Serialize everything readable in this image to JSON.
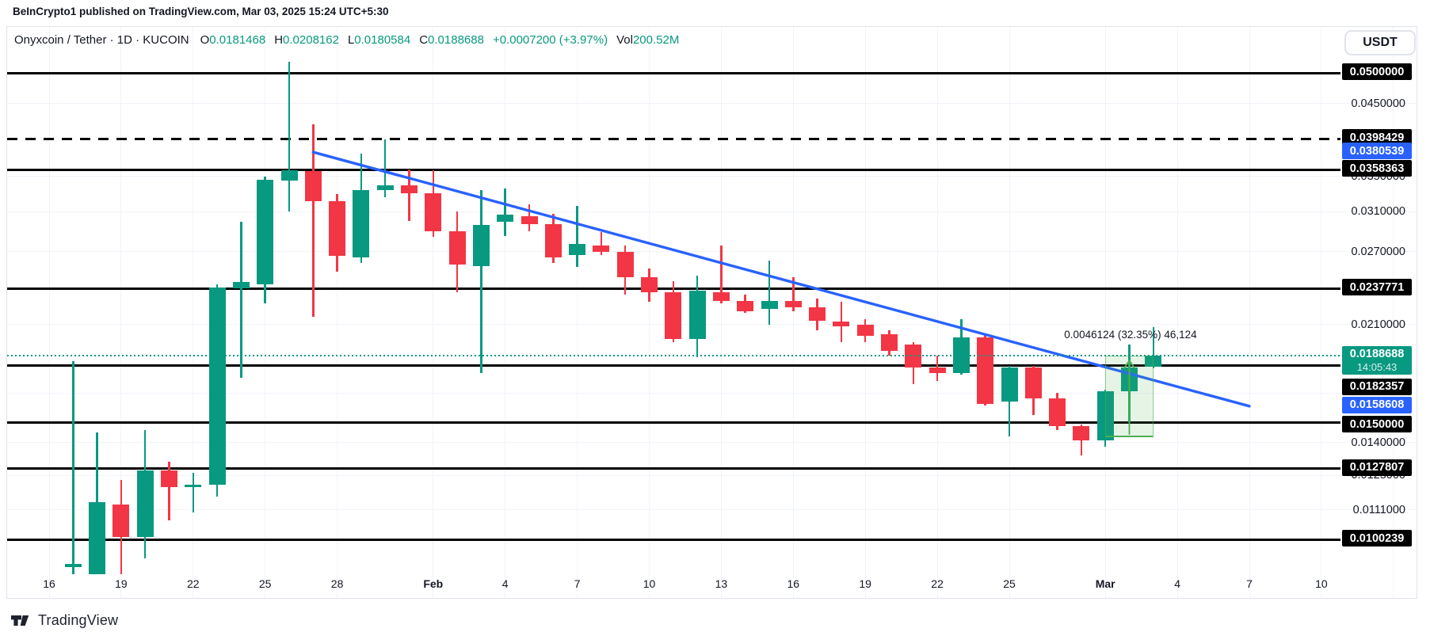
{
  "header": {
    "text": "BeInCrypto1 published on TradingView.com, Mar 03, 2025 15:24 UTC+5:30"
  },
  "legend": {
    "symbol": "Onyxcoin / Tether · 1D · KUCOIN",
    "o_label": "O",
    "o": "0.0181468",
    "h_label": "H",
    "h": "0.0208162",
    "l_label": "L",
    "l": "0.0180584",
    "c_label": "C",
    "c": "0.0188688",
    "change": "+0.0007200 (+3.97%)",
    "vol_label": "Vol",
    "vol": "200.52M"
  },
  "currency_button": {
    "label": "USDT"
  },
  "footer": {
    "brand": "TradingView"
  },
  "colors": {
    "up": "#089981",
    "down": "#f23645",
    "trendline": "#2962ff",
    "level_line": "#000000",
    "measure_green": "#4caf50",
    "grid": "#f0f3fa",
    "text": "#131722",
    "badge_black": "#000000",
    "badge_blue": "#2962ff",
    "badge_teal": "#089981"
  },
  "time_axis": {
    "ticks": [
      {
        "i": 0,
        "label": "16"
      },
      {
        "i": 3,
        "label": "19"
      },
      {
        "i": 6,
        "label": "22"
      },
      {
        "i": 9,
        "label": "25"
      },
      {
        "i": 12,
        "label": "28"
      },
      {
        "i": 16,
        "label": "Feb",
        "bold": true
      },
      {
        "i": 19,
        "label": "4"
      },
      {
        "i": 22,
        "label": "7"
      },
      {
        "i": 25,
        "label": "10"
      },
      {
        "i": 28,
        "label": "13"
      },
      {
        "i": 31,
        "label": "16"
      },
      {
        "i": 34,
        "label": "19"
      },
      {
        "i": 37,
        "label": "22"
      },
      {
        "i": 40,
        "label": "25"
      },
      {
        "i": 44,
        "label": "Mar",
        "bold": true
      },
      {
        "i": 47,
        "label": "4"
      },
      {
        "i": 50,
        "label": "7"
      },
      {
        "i": 53,
        "label": "10"
      }
    ],
    "extra_grid_indices": [
      56
    ]
  },
  "price_axis": {
    "plain_labels": [
      {
        "label": "0.0450000",
        "value": 0.045
      },
      {
        "label": "0.0350000",
        "value": 0.035
      },
      {
        "label": "0.0310000",
        "value": 0.031
      },
      {
        "label": "0.0270000",
        "value": 0.027
      },
      {
        "label": "0.0210000",
        "value": 0.021
      },
      {
        "label": "0.0140000",
        "value": 0.014
      },
      {
        "label": "0.0125000",
        "value": 0.0125
      },
      {
        "label": "0.0111000",
        "value": 0.0111
      }
    ],
    "grid_values": [
      0.045,
      0.035,
      0.031,
      0.027,
      0.021,
      0.0166,
      0.014,
      0.0125,
      0.0111
    ]
  },
  "chart_data": {
    "type": "candlestick",
    "title": "Onyxcoin / Tether",
    "exchange": "KUCOIN",
    "interval": "1D",
    "scale": "log",
    "ylim": [
      0.0089,
      0.055
    ],
    "grid": true,
    "candles": [
      {
        "date": "Jan 17",
        "o": 0.0091,
        "h": 0.0185,
        "l": 0.0089,
        "c": 0.0092
      },
      {
        "date": "Jan 18",
        "o": 0.0089,
        "h": 0.0145,
        "l": 0.0089,
        "c": 0.0114
      },
      {
        "date": "Jan 19",
        "o": 0.0113,
        "h": 0.0123,
        "l": 0.0089,
        "c": 0.0101
      },
      {
        "date": "Jan 20",
        "o": 0.0101,
        "h": 0.0146,
        "l": 0.0094,
        "c": 0.0127
      },
      {
        "date": "Jan 21",
        "o": 0.0127,
        "h": 0.0131,
        "l": 0.0107,
        "c": 0.012
      },
      {
        "date": "Jan 22",
        "o": 0.012,
        "h": 0.0126,
        "l": 0.011,
        "c": 0.0121
      },
      {
        "date": "Jan 23",
        "o": 0.0121,
        "h": 0.0241,
        "l": 0.0116,
        "c": 0.0239
      },
      {
        "date": "Jan 24",
        "o": 0.0238,
        "h": 0.0299,
        "l": 0.0175,
        "c": 0.0243
      },
      {
        "date": "Jan 25",
        "o": 0.0241,
        "h": 0.035,
        "l": 0.0226,
        "c": 0.0346
      },
      {
        "date": "Jan 26",
        "o": 0.0345,
        "h": 0.052,
        "l": 0.031,
        "c": 0.0357
      },
      {
        "date": "Jan 27",
        "o": 0.0356,
        "h": 0.0419,
        "l": 0.0216,
        "c": 0.0321
      },
      {
        "date": "Jan 28",
        "o": 0.0321,
        "h": 0.0329,
        "l": 0.0252,
        "c": 0.0266
      },
      {
        "date": "Jan 29",
        "o": 0.0265,
        "h": 0.0379,
        "l": 0.026,
        "c": 0.0334
      },
      {
        "date": "Jan 30",
        "o": 0.0334,
        "h": 0.0398,
        "l": 0.0326,
        "c": 0.0339
      },
      {
        "date": "Jan 31",
        "o": 0.0339,
        "h": 0.0358,
        "l": 0.03,
        "c": 0.033
      },
      {
        "date": "Feb 1",
        "o": 0.033,
        "h": 0.0357,
        "l": 0.0284,
        "c": 0.029
      },
      {
        "date": "Feb 2",
        "o": 0.029,
        "h": 0.031,
        "l": 0.0235,
        "c": 0.0258
      },
      {
        "date": "Feb 3",
        "o": 0.0257,
        "h": 0.0334,
        "l": 0.0178,
        "c": 0.0296
      },
      {
        "date": "Feb 4",
        "o": 0.0299,
        "h": 0.0336,
        "l": 0.0285,
        "c": 0.0307
      },
      {
        "date": "Feb 5",
        "o": 0.0305,
        "h": 0.0318,
        "l": 0.029,
        "c": 0.0297
      },
      {
        "date": "Feb 6",
        "o": 0.0297,
        "h": 0.0308,
        "l": 0.026,
        "c": 0.0265
      },
      {
        "date": "Feb 7",
        "o": 0.0267,
        "h": 0.0316,
        "l": 0.0256,
        "c": 0.0277
      },
      {
        "date": "Feb 8",
        "o": 0.0276,
        "h": 0.0289,
        "l": 0.0267,
        "c": 0.027
      },
      {
        "date": "Feb 9",
        "o": 0.027,
        "h": 0.0276,
        "l": 0.0233,
        "c": 0.0247
      },
      {
        "date": "Feb 10",
        "o": 0.0247,
        "h": 0.0255,
        "l": 0.0227,
        "c": 0.0235
      },
      {
        "date": "Feb 11",
        "o": 0.0235,
        "h": 0.0244,
        "l": 0.0198,
        "c": 0.02
      },
      {
        "date": "Feb 12",
        "o": 0.02,
        "h": 0.0249,
        "l": 0.0188,
        "c": 0.0236
      },
      {
        "date": "Feb 13",
        "o": 0.0235,
        "h": 0.0276,
        "l": 0.0226,
        "c": 0.0228
      },
      {
        "date": "Feb 14",
        "o": 0.0228,
        "h": 0.0233,
        "l": 0.0219,
        "c": 0.022
      },
      {
        "date": "Feb 15",
        "o": 0.0222,
        "h": 0.0262,
        "l": 0.021,
        "c": 0.0228
      },
      {
        "date": "Feb 16",
        "o": 0.0228,
        "h": 0.0247,
        "l": 0.022,
        "c": 0.0223
      },
      {
        "date": "Feb 17",
        "o": 0.0223,
        "h": 0.023,
        "l": 0.0206,
        "c": 0.0213
      },
      {
        "date": "Feb 18",
        "o": 0.0212,
        "h": 0.0227,
        "l": 0.0198,
        "c": 0.0209
      },
      {
        "date": "Feb 19",
        "o": 0.021,
        "h": 0.0214,
        "l": 0.0198,
        "c": 0.0202
      },
      {
        "date": "Feb 20",
        "o": 0.0203,
        "h": 0.0206,
        "l": 0.0189,
        "c": 0.0192
      },
      {
        "date": "Feb 21",
        "o": 0.0196,
        "h": 0.0198,
        "l": 0.0171,
        "c": 0.0181
      },
      {
        "date": "Feb 22",
        "o": 0.0181,
        "h": 0.0189,
        "l": 0.0173,
        "c": 0.0178
      },
      {
        "date": "Feb 23",
        "o": 0.0178,
        "h": 0.0214,
        "l": 0.0177,
        "c": 0.0201
      },
      {
        "date": "Feb 24",
        "o": 0.0201,
        "h": 0.0203,
        "l": 0.0159,
        "c": 0.016
      },
      {
        "date": "Feb 25",
        "o": 0.0161,
        "h": 0.0182,
        "l": 0.0143,
        "c": 0.0181
      },
      {
        "date": "Feb 26",
        "o": 0.0181,
        "h": 0.0182,
        "l": 0.0154,
        "c": 0.0163
      },
      {
        "date": "Feb 27",
        "o": 0.0163,
        "h": 0.0166,
        "l": 0.0146,
        "c": 0.0148
      },
      {
        "date": "Feb 28",
        "o": 0.0148,
        "h": 0.0149,
        "l": 0.0134,
        "c": 0.0141
      },
      {
        "date": "Mar 1",
        "o": 0.0141,
        "h": 0.0168,
        "l": 0.0138,
        "c": 0.0167
      },
      {
        "date": "Mar 2",
        "o": 0.0167,
        "h": 0.0196,
        "l": 0.015,
        "c": 0.0181
      },
      {
        "date": "Mar 3",
        "o": 0.0181468,
        "h": 0.0208162,
        "l": 0.0180584,
        "c": 0.0188688
      }
    ],
    "levels": [
      {
        "price": "0.0500000",
        "value": 0.05,
        "style": "solid",
        "badge_offset": 0
      },
      {
        "price": "0.0398429",
        "value": 0.0398429,
        "style": "dashed",
        "badge_offset": 0
      },
      {
        "price": "0.0358363",
        "value": 0.0358363,
        "style": "solid",
        "badge_offset": 0
      },
      {
        "price": "0.0237771",
        "value": 0.0237771,
        "style": "solid",
        "badge_offset": 0
      },
      {
        "price": "0.0182357",
        "value": 0.0182357,
        "style": "solid",
        "badge_offset": 28
      },
      {
        "price": "0.0150000",
        "value": 0.015,
        "style": "solid",
        "badge_offset": 4
      },
      {
        "price": "0.0127807",
        "value": 0.0127807,
        "style": "solid",
        "badge_offset": 0
      },
      {
        "price": "0.0100239",
        "value": 0.0100239,
        "style": "solid",
        "badge_offset": 0
      }
    ],
    "trendline": {
      "from_date": "Jan 27",
      "from_index": 11,
      "from_price": 0.0380539,
      "to_date": "Mar 7",
      "to_index": 50,
      "to_price": 0.0158608,
      "from_badge": "0.0380539",
      "to_badge": "0.0158608"
    },
    "current_price": {
      "price": "0.0188688",
      "value": 0.0188688,
      "countdown": "14:05:43"
    },
    "measurement": {
      "label": "0.0046124 (32.35%) 46,124",
      "change": 0.0046124,
      "percent": "32.35%",
      "bars_value": "46,124",
      "from_price": 0.0142564,
      "to_price": 0.0188688,
      "from_index": 44,
      "to_index": 46
    }
  }
}
